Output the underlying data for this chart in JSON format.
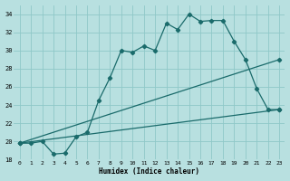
{
  "xlabel": "Humidex (Indice chaleur)",
  "ylabel": "",
  "bg_color": "#b8e0e0",
  "grid_color": "#8fc8c8",
  "line_color": "#1a6b6b",
  "marker_color": "#1a6b6b",
  "xlim": [
    -0.5,
    23.5
  ],
  "ylim": [
    18,
    35
  ],
  "xticks": [
    0,
    1,
    2,
    3,
    4,
    5,
    6,
    7,
    8,
    9,
    10,
    11,
    12,
    13,
    14,
    15,
    16,
    17,
    18,
    19,
    20,
    21,
    22,
    23
  ],
  "yticks": [
    18,
    20,
    22,
    24,
    26,
    28,
    30,
    32,
    34
  ],
  "line1_x": [
    0,
    1,
    2,
    3,
    4,
    5,
    6,
    7,
    8,
    9,
    10,
    11,
    12,
    13,
    14,
    15,
    16,
    17,
    18,
    19,
    20,
    21,
    22,
    23
  ],
  "line1_y": [
    19.8,
    19.8,
    20.0,
    18.6,
    18.7,
    20.5,
    21.0,
    24.5,
    27.0,
    30.0,
    29.8,
    30.5,
    30.0,
    33.0,
    32.3,
    34.0,
    33.2,
    33.3,
    33.3,
    31.0,
    29.0,
    25.8,
    23.5,
    23.5
  ],
  "line2_x": [
    0,
    23
  ],
  "line2_y": [
    19.8,
    29.0
  ],
  "line3_x": [
    0,
    23
  ],
  "line3_y": [
    19.8,
    23.5
  ]
}
